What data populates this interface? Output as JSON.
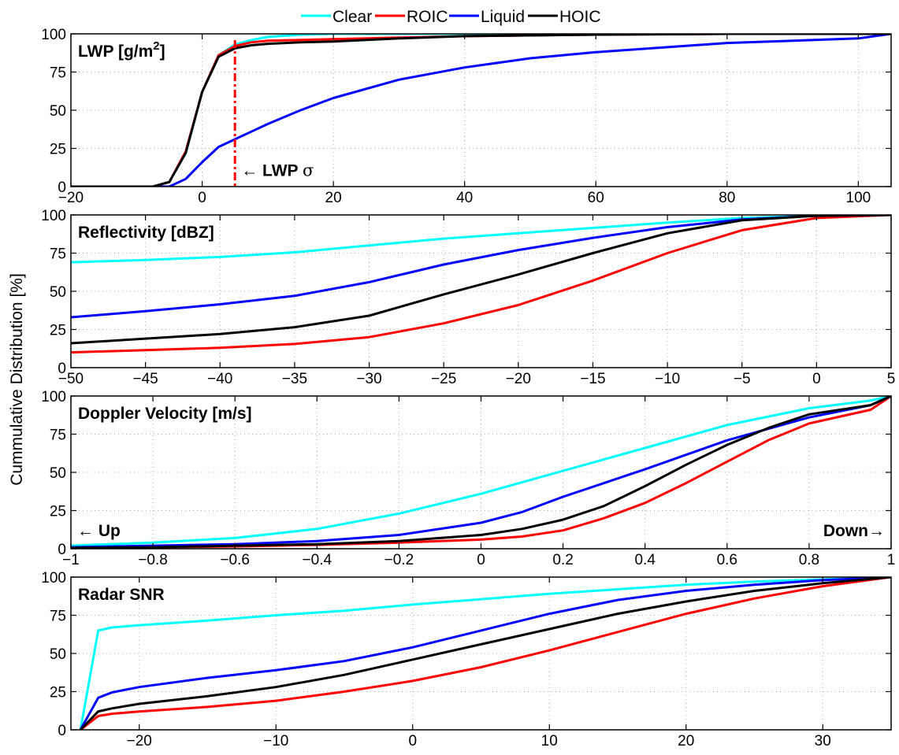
{
  "legend": {
    "placement": "top-center",
    "entries": [
      {
        "name": "Clear",
        "color": "#00FFFF"
      },
      {
        "name": "ROIC",
        "color": "#FF0000"
      },
      {
        "name": "Liquid",
        "color": "#0000FF"
      },
      {
        "name": "HOIC",
        "color": "#000000"
      }
    ]
  },
  "shared_ylabel": "Cummulative Distribution [%]",
  "chart_data": [
    {
      "type": "line",
      "title": "LWP [g/m²]",
      "title_main": "LWP [g/m",
      "title_sup": "2",
      "title_end": "]",
      "xlim": [
        -20,
        105
      ],
      "ylim": [
        0,
        100
      ],
      "xticks": [
        "-20",
        "0",
        "20",
        "40",
        "60",
        "80",
        "100"
      ],
      "xtick_values": [
        -20,
        0,
        20,
        40,
        60,
        80,
        100
      ],
      "yticks": [
        "0",
        "25",
        "50",
        "75",
        "100"
      ],
      "ytick_values": [
        0,
        25,
        50,
        75,
        100
      ],
      "grid": true,
      "vline": {
        "x": 5,
        "color": "#FF0000",
        "style": "dash-dot"
      },
      "annotation": {
        "arrow": "←",
        "label": "LWP",
        "symbol": "σ",
        "x": 5,
        "y": 10
      },
      "series": [
        {
          "name": "Clear",
          "color": "#00FFFF",
          "x": [
            -20,
            -7.5,
            -5,
            -2.5,
            0,
            2.5,
            5,
            7.5,
            10,
            15,
            20,
            40,
            60,
            80,
            105
          ],
          "y": [
            0,
            0,
            3,
            22,
            62,
            86,
            93,
            96,
            98,
            99.5,
            100,
            100,
            100,
            100,
            100
          ]
        },
        {
          "name": "ROIC",
          "color": "#FF0000",
          "x": [
            -20,
            -7.5,
            -5,
            -2.5,
            0,
            2.5,
            5,
            7.5,
            10,
            15,
            20,
            30,
            40,
            60,
            80,
            105
          ],
          "y": [
            0,
            0,
            3,
            23,
            62,
            86,
            92,
            94.5,
            95.5,
            96,
            96.5,
            97.5,
            98.5,
            99.5,
            100,
            100
          ]
        },
        {
          "name": "Liquid",
          "color": "#0000FF",
          "x": [
            -20,
            -5,
            -2.5,
            0,
            2.5,
            5,
            7.5,
            10,
            15,
            20,
            30,
            40,
            50,
            60,
            80,
            100,
            105
          ],
          "y": [
            0,
            0,
            5,
            16,
            26,
            31,
            36,
            41,
            50,
            58,
            70,
            78,
            84,
            88,
            94,
            97,
            100
          ]
        },
        {
          "name": "HOIC",
          "color": "#000000",
          "x": [
            -20,
            -7.5,
            -5,
            -2.5,
            0,
            2.5,
            5,
            7.5,
            10,
            15,
            20,
            30,
            40,
            60,
            80,
            105
          ],
          "y": [
            0,
            0,
            3,
            22,
            62,
            85,
            90.5,
            92.5,
            93.5,
            94.5,
            95,
            97,
            98.5,
            99.5,
            100,
            100
          ]
        }
      ]
    },
    {
      "type": "line",
      "title": "Reflectivity [dBZ]",
      "xlim": [
        -50,
        5
      ],
      "ylim": [
        0,
        100
      ],
      "xticks": [
        "-50",
        "-45",
        "-40",
        "-35",
        "-30",
        "-25",
        "-20",
        "-15",
        "-10",
        "-5",
        "0",
        "5"
      ],
      "xtick_values": [
        -50,
        -45,
        -40,
        -35,
        -30,
        -25,
        -20,
        -15,
        -10,
        -5,
        0,
        5
      ],
      "yticks": [
        "0",
        "25",
        "50",
        "75",
        "100"
      ],
      "ytick_values": [
        0,
        25,
        50,
        75,
        100
      ],
      "grid": true,
      "series": [
        {
          "name": "Clear",
          "color": "#00FFFF",
          "x": [
            -50,
            -45,
            -40,
            -35,
            -30,
            -25,
            -20,
            -15,
            -10,
            -5,
            0,
            5
          ],
          "y": [
            69,
            70.5,
            72.5,
            75.5,
            80,
            84.5,
            88,
            91.5,
            95,
            98,
            99.5,
            100
          ]
        },
        {
          "name": "ROIC",
          "color": "#FF0000",
          "x": [
            -50,
            -45,
            -40,
            -35,
            -30,
            -25,
            -20,
            -15,
            -10,
            -5,
            0,
            5
          ],
          "y": [
            10,
            11.5,
            13,
            15.5,
            20,
            29,
            41,
            57,
            75,
            90,
            98,
            100
          ]
        },
        {
          "name": "Liquid",
          "color": "#0000FF",
          "x": [
            -50,
            -45,
            -40,
            -35,
            -30,
            -25,
            -20,
            -15,
            -10,
            -5,
            0,
            5
          ],
          "y": [
            33,
            37,
            41.5,
            47,
            56,
            67.5,
            77,
            85,
            92,
            97,
            99.5,
            100
          ]
        },
        {
          "name": "HOIC",
          "color": "#000000",
          "x": [
            -50,
            -45,
            -40,
            -35,
            -30,
            -25,
            -20,
            -15,
            -10,
            -5,
            0,
            5
          ],
          "y": [
            16,
            19,
            22,
            26.5,
            34,
            48,
            61,
            75,
            88,
            96.5,
            99.5,
            100
          ]
        }
      ]
    },
    {
      "type": "line",
      "title": "Doppler Velocity [m/s]",
      "xlim": [
        -1,
        1
      ],
      "ylim": [
        0,
        100
      ],
      "xticks": [
        "-1",
        "-0.8",
        "-0.6",
        "-0.4",
        "-0.2",
        "0",
        "0.2",
        "0.4",
        "0.6",
        "0.8",
        "1"
      ],
      "xtick_values": [
        -1,
        -0.8,
        -0.6,
        -0.4,
        -0.2,
        0,
        0.2,
        0.4,
        0.6,
        0.8,
        1
      ],
      "yticks": [
        "0",
        "25",
        "50",
        "75",
        "100"
      ],
      "ytick_values": [
        0,
        25,
        50,
        75,
        100
      ],
      "grid": true,
      "annotations": [
        {
          "text": "← Up",
          "anchor": "left"
        },
        {
          "text": "Down→",
          "anchor": "right"
        }
      ],
      "series": [
        {
          "name": "Clear",
          "color": "#00FFFF",
          "x": [
            -1,
            -0.8,
            -0.6,
            -0.4,
            -0.2,
            0,
            0.2,
            0.4,
            0.6,
            0.8,
            0.95,
            1
          ],
          "y": [
            2,
            4,
            7,
            13,
            23,
            36,
            51,
            66,
            81,
            92,
            97,
            100
          ]
        },
        {
          "name": "ROIC",
          "color": "#FF0000",
          "x": [
            -1,
            -0.8,
            -0.6,
            -0.4,
            -0.2,
            0,
            0.1,
            0.2,
            0.3,
            0.4,
            0.5,
            0.6,
            0.7,
            0.8,
            0.95,
            1
          ],
          "y": [
            0.5,
            1,
            1.5,
            2.5,
            4,
            6,
            8,
            12,
            20,
            30,
            43,
            57,
            71,
            82,
            91,
            100
          ]
        },
        {
          "name": "Liquid",
          "color": "#0000FF",
          "x": [
            -1,
            -0.8,
            -0.6,
            -0.4,
            -0.2,
            0,
            0.1,
            0.2,
            0.3,
            0.4,
            0.6,
            0.8,
            0.95,
            1
          ],
          "y": [
            1,
            2,
            3,
            5,
            9,
            17,
            24,
            34,
            43,
            52,
            71,
            86,
            94,
            100
          ]
        },
        {
          "name": "HOIC",
          "color": "#000000",
          "x": [
            -1,
            -0.8,
            -0.6,
            -0.4,
            -0.2,
            0,
            0.1,
            0.2,
            0.3,
            0.4,
            0.5,
            0.6,
            0.7,
            0.8,
            0.95,
            1
          ],
          "y": [
            0.5,
            1,
            2,
            3,
            5,
            9,
            13,
            19,
            28,
            41,
            55,
            68,
            79,
            88,
            94,
            100
          ]
        }
      ]
    },
    {
      "type": "line",
      "title": "Radar SNR",
      "xlim": [
        -25,
        35
      ],
      "ylim": [
        0,
        100
      ],
      "xticks": [
        "-20",
        "-10",
        "0",
        "10",
        "20",
        "30"
      ],
      "xtick_values": [
        -20,
        -10,
        0,
        10,
        20,
        30
      ],
      "yticks": [
        "0",
        "25",
        "50",
        "75",
        "100"
      ],
      "ytick_values": [
        0,
        25,
        50,
        75,
        100
      ],
      "grid": true,
      "series": [
        {
          "name": "Clear",
          "color": "#00FFFF",
          "x": [
            -24.3,
            -23,
            -22,
            -20,
            -15,
            -10,
            -5,
            0,
            5,
            10,
            15,
            20,
            25,
            30,
            35
          ],
          "y": [
            0,
            65,
            67,
            68.5,
            71.5,
            75,
            78,
            82,
            85.5,
            89,
            92,
            95,
            97,
            98.5,
            100
          ]
        },
        {
          "name": "ROIC",
          "color": "#FF0000",
          "x": [
            -24.3,
            -23,
            -22,
            -20,
            -15,
            -10,
            -5,
            0,
            5,
            10,
            15,
            20,
            25,
            30,
            35
          ],
          "y": [
            0,
            9,
            10.5,
            12,
            15,
            19,
            25,
            32,
            41,
            52,
            64,
            76,
            86,
            94,
            100
          ]
        },
        {
          "name": "Liquid",
          "color": "#0000FF",
          "x": [
            -24.3,
            -23,
            -22,
            -20,
            -15,
            -10,
            -5,
            0,
            5,
            10,
            15,
            20,
            25,
            30,
            35
          ],
          "y": [
            0,
            21,
            24.5,
            28,
            34,
            39,
            45,
            54,
            65,
            76,
            85,
            91,
            95,
            98,
            100
          ]
        },
        {
          "name": "HOIC",
          "color": "#000000",
          "x": [
            -24.3,
            -23,
            -22,
            -20,
            -15,
            -10,
            -5,
            0,
            5,
            10,
            15,
            20,
            25,
            30,
            35
          ],
          "y": [
            0,
            12,
            14,
            17,
            22,
            28,
            36,
            46,
            56,
            66,
            76,
            84,
            91,
            96,
            100
          ]
        }
      ]
    }
  ]
}
